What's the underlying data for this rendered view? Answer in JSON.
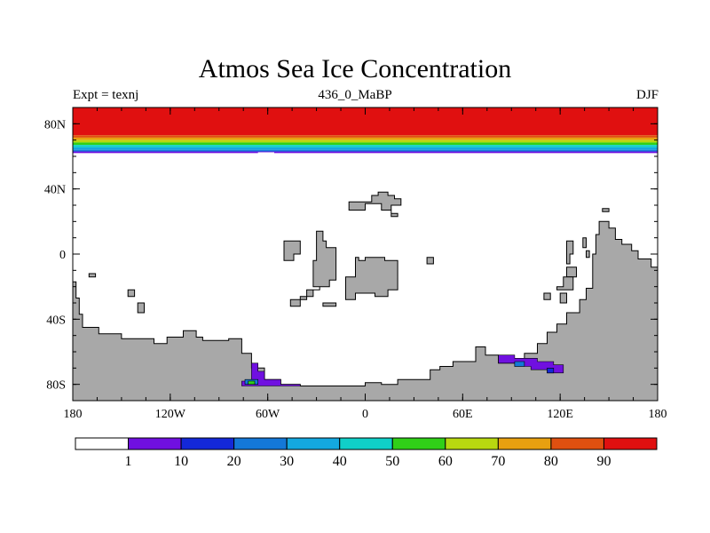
{
  "chart_data": {
    "type": "heatmap",
    "title": "Atmos Sea Ice Concentration",
    "left_label": "Expt = texnj",
    "center_label": "436_0_MaBP",
    "right_label": "DJF",
    "x_range": [
      -180,
      180
    ],
    "y_range": [
      -90,
      90
    ],
    "x_ticks": [
      {
        "value": -180,
        "label": "180"
      },
      {
        "value": -120,
        "label": "120W"
      },
      {
        "value": -60,
        "label": "60W"
      },
      {
        "value": 0,
        "label": "0"
      },
      {
        "value": 60,
        "label": "60E"
      },
      {
        "value": 120,
        "label": "120E"
      },
      {
        "value": 180,
        "label": "180"
      }
    ],
    "y_ticks": [
      {
        "value": 80,
        "label": "80N"
      },
      {
        "value": 40,
        "label": "40N"
      },
      {
        "value": 0,
        "label": "0"
      },
      {
        "value": -40,
        "label": "40S"
      },
      {
        "value": -80,
        "label": "80S"
      }
    ],
    "colorbar": {
      "colors": [
        "#ffffff",
        "#7010e0",
        "#1428d8",
        "#1478d8",
        "#14a8e0",
        "#10d0c8",
        "#30d018",
        "#b8d810",
        "#e8a010",
        "#e05010",
        "#e01010"
      ],
      "labels": [
        "1",
        "10",
        "20",
        "30",
        "40",
        "50",
        "60",
        "70",
        "80",
        "90"
      ]
    },
    "north_band": [
      {
        "lat_top": 90,
        "lat_bottom": 73,
        "color": "#e01010"
      },
      {
        "lat_top": 73,
        "lat_bottom": 71.5,
        "color": "#e05010"
      },
      {
        "lat_top": 71.5,
        "lat_bottom": 70,
        "color": "#e8a010"
      },
      {
        "lat_top": 70,
        "lat_bottom": 68.5,
        "color": "#b8d810"
      },
      {
        "lat_top": 68.5,
        "lat_bottom": 67,
        "color": "#30d018"
      },
      {
        "lat_top": 67,
        "lat_bottom": 65.5,
        "color": "#10d0c8"
      },
      {
        "lat_top": 65.5,
        "lat_bottom": 64,
        "color": "#14a8e0"
      },
      {
        "lat_top": 64,
        "lat_bottom": 63,
        "color": "#1478d8"
      },
      {
        "lat_top": 63,
        "lat_bottom": 62,
        "color": "#7010e0"
      }
    ],
    "land_color": "#a8a8a8",
    "land_masses": [
      {
        "name": "south-polar-continent",
        "points": [
          [
            -180,
            -17
          ],
          [
            -178,
            -17
          ],
          [
            -178,
            -27
          ],
          [
            -176,
            -27
          ],
          [
            -176,
            -37
          ],
          [
            -174,
            -37
          ],
          [
            -174,
            -45
          ],
          [
            -164,
            -45
          ],
          [
            -164,
            -49
          ],
          [
            -150,
            -49
          ],
          [
            -150,
            -52
          ],
          [
            -130,
            -52
          ],
          [
            -130,
            -55
          ],
          [
            -122,
            -55
          ],
          [
            -122,
            -51
          ],
          [
            -112,
            -51
          ],
          [
            -112,
            -47
          ],
          [
            -104,
            -47
          ],
          [
            -104,
            -51
          ],
          [
            -100,
            -51
          ],
          [
            -100,
            -53
          ],
          [
            -84,
            -53
          ],
          [
            -84,
            -52
          ],
          [
            -76,
            -52
          ],
          [
            -76,
            -61
          ],
          [
            -70,
            -61
          ],
          [
            -70,
            -70
          ],
          [
            -62,
            -70
          ],
          [
            -62,
            -77
          ],
          [
            -52,
            -77
          ],
          [
            -52,
            -80
          ],
          [
            -40,
            -80
          ],
          [
            -40,
            -81
          ],
          [
            0,
            -81
          ],
          [
            0,
            -79
          ],
          [
            10,
            -79
          ],
          [
            10,
            -80
          ],
          [
            20,
            -80
          ],
          [
            20,
            -77
          ],
          [
            40,
            -77
          ],
          [
            40,
            -71
          ],
          [
            46,
            -71
          ],
          [
            46,
            -69
          ],
          [
            54,
            -69
          ],
          [
            54,
            -66
          ],
          [
            68,
            -66
          ],
          [
            68,
            -57
          ],
          [
            74,
            -57
          ],
          [
            74,
            -62
          ],
          [
            82,
            -62
          ],
          [
            82,
            -67
          ],
          [
            98,
            -67
          ],
          [
            98,
            -61
          ],
          [
            106,
            -61
          ],
          [
            106,
            -55
          ],
          [
            112,
            -55
          ],
          [
            112,
            -48
          ],
          [
            118,
            -48
          ],
          [
            118,
            -43
          ],
          [
            124,
            -43
          ],
          [
            124,
            -36
          ],
          [
            132,
            -36
          ],
          [
            132,
            -28
          ],
          [
            136,
            -28
          ],
          [
            136,
            -21
          ],
          [
            140,
            -21
          ],
          [
            140,
            0
          ],
          [
            142,
            0
          ],
          [
            142,
            12
          ],
          [
            144,
            12
          ],
          [
            144,
            20
          ],
          [
            150,
            20
          ],
          [
            150,
            16
          ],
          [
            154,
            16
          ],
          [
            154,
            9
          ],
          [
            158,
            9
          ],
          [
            158,
            6
          ],
          [
            164,
            6
          ],
          [
            164,
            2
          ],
          [
            168,
            2
          ],
          [
            168,
            -3
          ],
          [
            176,
            -3
          ],
          [
            176,
            -8
          ],
          [
            180,
            -8
          ],
          [
            180,
            -90
          ],
          [
            -180,
            -90
          ]
        ]
      },
      {
        "name": "island-nc1",
        "points": [
          [
            -10,
            32
          ],
          [
            4,
            32
          ],
          [
            4,
            36
          ],
          [
            8,
            36
          ],
          [
            8,
            38
          ],
          [
            14,
            38
          ],
          [
            14,
            36
          ],
          [
            18,
            36
          ],
          [
            18,
            34
          ],
          [
            22,
            34
          ],
          [
            22,
            30
          ],
          [
            16,
            30
          ],
          [
            16,
            25
          ],
          [
            20,
            25
          ],
          [
            20,
            23
          ],
          [
            16,
            23
          ],
          [
            16,
            27
          ],
          [
            10,
            27
          ],
          [
            10,
            31
          ],
          [
            0,
            31
          ],
          [
            0,
            27
          ],
          [
            -10,
            27
          ]
        ]
      },
      {
        "name": "island-wc1",
        "points": [
          [
            -50,
            8
          ],
          [
            -40,
            8
          ],
          [
            -40,
            0
          ],
          [
            -44,
            0
          ],
          [
            -44,
            -4
          ],
          [
            -50,
            -4
          ]
        ]
      },
      {
        "name": "island-wc2",
        "points": [
          [
            -30,
            14
          ],
          [
            -26,
            14
          ],
          [
            -26,
            8
          ],
          [
            -24,
            8
          ],
          [
            -24,
            4
          ],
          [
            -18,
            4
          ],
          [
            -18,
            -16
          ],
          [
            -22,
            -16
          ],
          [
            -22,
            -20
          ],
          [
            -28,
            -20
          ],
          [
            -28,
            -22
          ],
          [
            -32,
            -22
          ],
          [
            -32,
            -26
          ],
          [
            -40,
            -26
          ],
          [
            -40,
            -32
          ],
          [
            -46,
            -32
          ],
          [
            -46,
            -28
          ],
          [
            -36,
            -28
          ],
          [
            -36,
            -22
          ],
          [
            -28,
            -22
          ],
          [
            -28,
            -20
          ],
          [
            -32,
            -20
          ],
          [
            -32,
            -4
          ],
          [
            -30,
            -4
          ]
        ]
      },
      {
        "name": "island-c1",
        "points": [
          [
            -6,
            -2
          ],
          [
            -4,
            -2
          ],
          [
            -4,
            -4
          ],
          [
            0,
            -4
          ],
          [
            0,
            -2
          ],
          [
            12,
            -2
          ],
          [
            12,
            -4
          ],
          [
            20,
            -4
          ],
          [
            20,
            -22
          ],
          [
            14,
            -22
          ],
          [
            14,
            -26
          ],
          [
            6,
            -26
          ],
          [
            6,
            -24
          ],
          [
            -6,
            -24
          ],
          [
            -6,
            -28
          ],
          [
            -12,
            -28
          ],
          [
            -12,
            -14
          ],
          [
            -6,
            -14
          ]
        ]
      },
      {
        "name": "island-c2",
        "points": [
          [
            -26,
            -30
          ],
          [
            -18,
            -30
          ],
          [
            -18,
            -32
          ],
          [
            -26,
            -32
          ]
        ]
      },
      {
        "name": "island-e1",
        "points": [
          [
            38,
            -2
          ],
          [
            42,
            -2
          ],
          [
            42,
            -6
          ],
          [
            38,
            -6
          ]
        ]
      },
      {
        "name": "island-e2",
        "points": [
          [
            124,
            8
          ],
          [
            128,
            8
          ],
          [
            128,
            0
          ],
          [
            126,
            0
          ],
          [
            126,
            -6
          ],
          [
            124,
            -6
          ]
        ]
      },
      {
        "name": "island-e3",
        "points": [
          [
            134,
            10
          ],
          [
            136,
            10
          ],
          [
            136,
            4
          ],
          [
            134,
            4
          ]
        ]
      },
      {
        "name": "island-e4",
        "points": [
          [
            124,
            -8
          ],
          [
            130,
            -8
          ],
          [
            130,
            -14
          ],
          [
            124,
            -14
          ]
        ]
      },
      {
        "name": "island-e5",
        "points": [
          [
            122,
            -14
          ],
          [
            128,
            -14
          ],
          [
            128,
            -22
          ],
          [
            118,
            -22
          ],
          [
            118,
            -20
          ],
          [
            122,
            -20
          ]
        ]
      },
      {
        "name": "island-e6",
        "points": [
          [
            120,
            -24
          ],
          [
            124,
            -24
          ],
          [
            124,
            -30
          ],
          [
            120,
            -30
          ]
        ]
      },
      {
        "name": "island-e7",
        "points": [
          [
            110,
            -24
          ],
          [
            114,
            -24
          ],
          [
            114,
            -28
          ],
          [
            110,
            -28
          ]
        ]
      },
      {
        "name": "island-e8",
        "points": [
          [
            146,
            28
          ],
          [
            150,
            28
          ],
          [
            150,
            26
          ],
          [
            146,
            26
          ]
        ]
      },
      {
        "name": "island-e9",
        "points": [
          [
            136,
            2
          ],
          [
            138,
            2
          ],
          [
            138,
            -2
          ],
          [
            136,
            -2
          ]
        ]
      },
      {
        "name": "island-w1",
        "points": [
          [
            -170,
            -12
          ],
          [
            -166,
            -12
          ],
          [
            -166,
            -14
          ],
          [
            -170,
            -14
          ]
        ]
      },
      {
        "name": "island-w2",
        "points": [
          [
            -146,
            -22
          ],
          [
            -142,
            -22
          ],
          [
            -142,
            -26
          ],
          [
            -146,
            -26
          ]
        ]
      },
      {
        "name": "island-w3",
        "points": [
          [
            -140,
            -30
          ],
          [
            -136,
            -30
          ],
          [
            -136,
            -36
          ],
          [
            -140,
            -36
          ]
        ]
      }
    ],
    "south_ice": [
      {
        "name": "ross-ice",
        "color": "#7010e0",
        "points": [
          [
            -70,
            -67
          ],
          [
            -66,
            -67
          ],
          [
            -66,
            -72
          ],
          [
            -62,
            -72
          ],
          [
            -62,
            -77
          ],
          [
            -52,
            -77
          ],
          [
            -52,
            -80
          ],
          [
            -40,
            -80
          ],
          [
            -40,
            -81
          ],
          [
            -76,
            -81
          ],
          [
            -76,
            -78
          ],
          [
            -70,
            -78
          ]
        ]
      },
      {
        "name": "ross-ice-mid",
        "color": "#1478d8",
        "points": [
          [
            -74,
            -77
          ],
          [
            -66,
            -77
          ],
          [
            -66,
            -80
          ],
          [
            -74,
            -80
          ]
        ]
      },
      {
        "name": "ross-ice-core",
        "color": "#30d018",
        "points": [
          [
            -72,
            -78
          ],
          [
            -68,
            -78
          ],
          [
            -68,
            -80
          ],
          [
            -72,
            -80
          ]
        ]
      },
      {
        "name": "east-ice",
        "color": "#7010e0",
        "points": [
          [
            82,
            -62
          ],
          [
            92,
            -62
          ],
          [
            92,
            -64
          ],
          [
            106,
            -64
          ],
          [
            106,
            -66
          ],
          [
            116,
            -66
          ],
          [
            116,
            -68
          ],
          [
            122,
            -68
          ],
          [
            122,
            -73
          ],
          [
            112,
            -73
          ],
          [
            112,
            -71
          ],
          [
            102,
            -71
          ],
          [
            102,
            -69
          ],
          [
            92,
            -69
          ],
          [
            92,
            -67
          ],
          [
            82,
            -67
          ]
        ]
      },
      {
        "name": "east-ice-mid",
        "color": "#1478d8",
        "points": [
          [
            92,
            -66
          ],
          [
            98,
            -66
          ],
          [
            98,
            -69
          ],
          [
            92,
            -69
          ]
        ]
      },
      {
        "name": "east-ice-mid2",
        "color": "#1428d8",
        "points": [
          [
            112,
            -70
          ],
          [
            116,
            -70
          ],
          [
            116,
            -73
          ],
          [
            112,
            -73
          ]
        ]
      }
    ]
  }
}
